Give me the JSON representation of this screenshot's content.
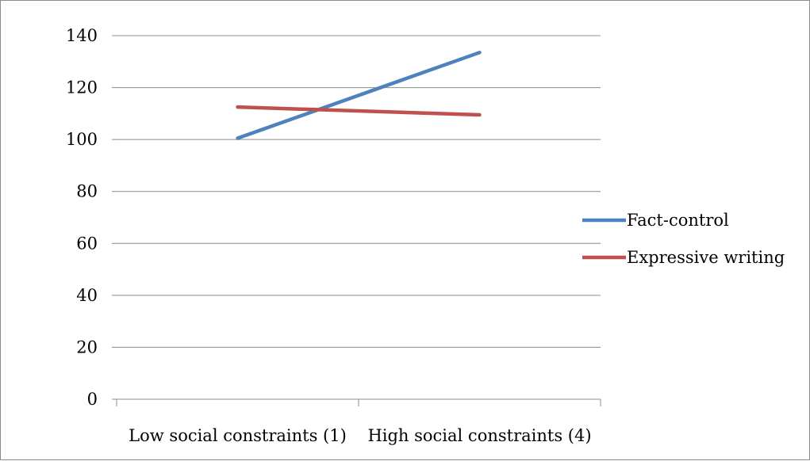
{
  "chart_data": {
    "type": "line",
    "title": "",
    "xlabel": "",
    "ylabel": "",
    "categories": [
      "Low social constraints (1)",
      "High social constraints (4)"
    ],
    "y_ticks": [
      0,
      20,
      40,
      60,
      80,
      100,
      120,
      140
    ],
    "ylim": [
      0,
      140
    ],
    "grid": true,
    "legend_position": "right",
    "series": [
      {
        "name": "Fact-control",
        "values": [
          100.5,
          133.5
        ],
        "color": "#4f81bd"
      },
      {
        "name": "Expressive writing",
        "values": [
          112.5,
          109.5
        ],
        "color": "#c0504d"
      }
    ]
  }
}
